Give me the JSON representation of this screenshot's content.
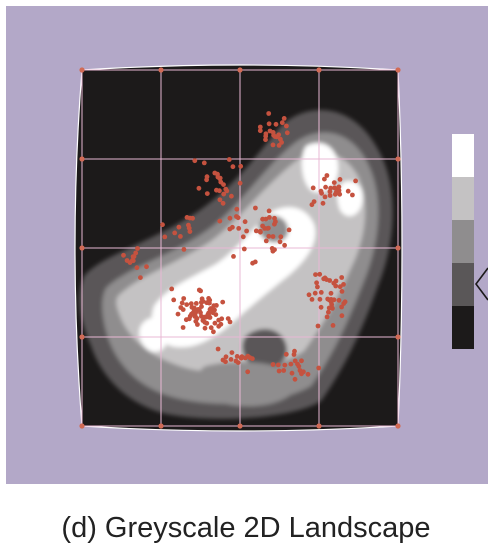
{
  "caption": "(d) Greyscale 2D Landscape",
  "colors": {
    "background": "#b3a8c8",
    "grid_line": "#e8b8d4",
    "point": "#c5523f",
    "node": "#d16a55",
    "levels": [
      "#1c1a1a",
      "#5a5758",
      "#8f8d8e",
      "#c4c2c3",
      "#ffffff"
    ]
  },
  "legend": {
    "levels": 5,
    "marker": "arrow-left",
    "marked_level": 1
  },
  "grid": {
    "rows": 4,
    "cols": 4
  }
}
